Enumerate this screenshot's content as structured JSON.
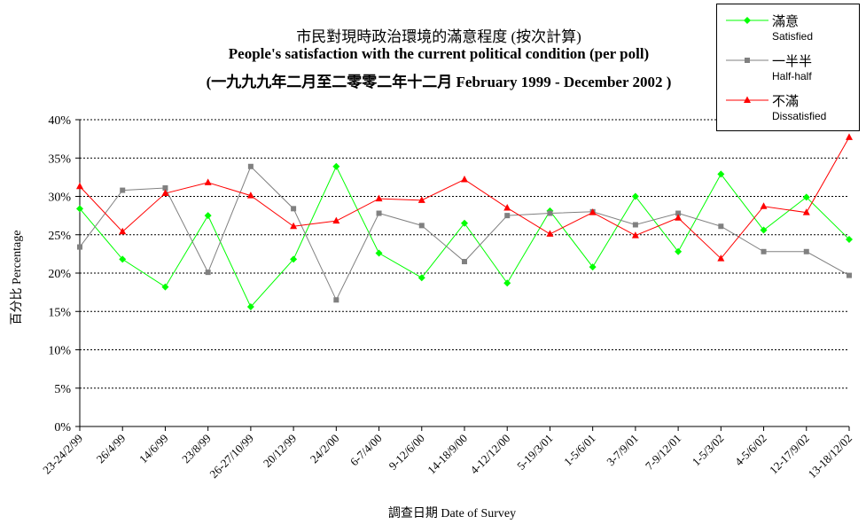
{
  "chart_data": {
    "type": "line",
    "title": "市民對現時政治環境的滿意程度 (按次計算)",
    "subtitle": "People's satisfaction with the current political condition (per poll)",
    "period": "(一九九九年二月至二零零二年十二月 February 1999 - December 2002 )",
    "xlabel": "調查日期 Date of Survey",
    "ylabel": "百分比 Percentage",
    "ylim": [
      0,
      40
    ],
    "yticks": [
      "0%",
      "5%",
      "10%",
      "15%",
      "20%",
      "25%",
      "30%",
      "35%",
      "40%"
    ],
    "ytick_values": [
      0,
      5,
      10,
      15,
      20,
      25,
      30,
      35,
      40
    ],
    "grid": true,
    "legend_position": "top-right",
    "categories": [
      "23-24/2/99",
      "26/4/99",
      "14/6/99",
      "23/8/99",
      "26-27/10/99",
      "20/12/99",
      "24/2/00",
      "6-7/4/00",
      "9-12/6/00",
      "14-18/9/00",
      "4-12/12/00",
      "5-19/3/01",
      "1-5/6/01",
      "3-7/9/01",
      "7-9/12/01",
      "1-5/3/02",
      "4-5/6/02",
      "12-17/9/02",
      "13-18/12/02"
    ],
    "series": [
      {
        "name": "滿意",
        "sub": "Satisfied",
        "color": "#00ff00",
        "marker": "diamond",
        "values": [
          28.4,
          21.8,
          18.2,
          27.5,
          15.6,
          21.8,
          33.9,
          22.6,
          19.4,
          26.5,
          18.7,
          28.1,
          20.8,
          30.0,
          22.8,
          32.9,
          25.6,
          29.9,
          24.4
        ]
      },
      {
        "name": "一半半",
        "sub": "Half-half",
        "color": "#808080",
        "marker": "square",
        "values": [
          23.4,
          30.8,
          31.1,
          20.1,
          33.9,
          28.4,
          16.5,
          27.8,
          26.2,
          21.5,
          27.5,
          27.8,
          28.0,
          26.3,
          27.8,
          26.1,
          22.8,
          22.8,
          19.7
        ]
      },
      {
        "name": "不滿",
        "sub": "Dissatisfied",
        "color": "#ff0000",
        "marker": "triangle",
        "values": [
          31.3,
          25.4,
          30.4,
          31.8,
          30.1,
          26.1,
          26.8,
          29.7,
          29.5,
          32.2,
          28.5,
          25.1,
          27.9,
          24.9,
          27.2,
          21.9,
          28.7,
          27.9,
          37.7
        ]
      }
    ]
  }
}
